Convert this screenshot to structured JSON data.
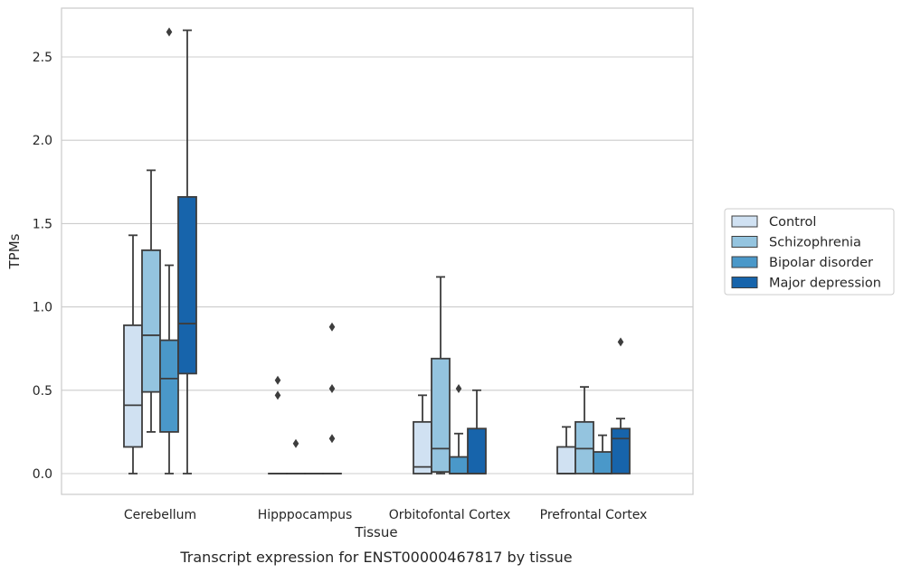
{
  "chart_data": {
    "type": "box",
    "title": "",
    "caption": "Transcript expression for ENST00000467817 by tissue",
    "xlabel": "Tissue",
    "ylabel": "TPMs",
    "ylim": [
      -0.13,
      2.8
    ],
    "yticks": [
      0.0,
      0.5,
      1.0,
      1.5,
      2.0,
      2.5
    ],
    "ytick_labels": [
      "0.0",
      "0.5",
      "1.0",
      "1.5",
      "2.0",
      "2.5"
    ],
    "grid": "horizontal",
    "legend_position": "right",
    "categories": [
      "Cerebellum",
      "Hipppocampus",
      "Orbitofontal Cortex",
      "Prefrontal Cortex"
    ],
    "series": [
      {
        "name": "Control",
        "color": "#d0e1f2",
        "boxes": [
          {
            "whisker_low": 0.0,
            "q1": 0.16,
            "median": 0.41,
            "q3": 0.89,
            "whisker_high": 1.43,
            "outliers": []
          },
          {
            "whisker_low": 0.0,
            "q1": 0.0,
            "median": 0.0,
            "q3": 0.0,
            "whisker_high": 0.0,
            "outliers": [
              0.47,
              0.56
            ]
          },
          {
            "whisker_low": 0.0,
            "q1": 0.0,
            "median": 0.04,
            "q3": 0.31,
            "whisker_high": 0.47,
            "outliers": []
          },
          {
            "whisker_low": 0.0,
            "q1": 0.0,
            "median": 0.0,
            "q3": 0.16,
            "whisker_high": 0.28,
            "outliers": []
          }
        ]
      },
      {
        "name": "Schizophrenia",
        "color": "#94c4df",
        "boxes": [
          {
            "whisker_low": 0.25,
            "q1": 0.49,
            "median": 0.83,
            "q3": 1.34,
            "whisker_high": 1.82,
            "outliers": []
          },
          {
            "whisker_low": 0.0,
            "q1": 0.0,
            "median": 0.0,
            "q3": 0.0,
            "whisker_high": 0.0,
            "outliers": [
              0.18
            ]
          },
          {
            "whisker_low": 0.0,
            "q1": 0.01,
            "median": 0.15,
            "q3": 0.69,
            "whisker_high": 1.18,
            "outliers": []
          },
          {
            "whisker_low": 0.0,
            "q1": 0.0,
            "median": 0.15,
            "q3": 0.31,
            "whisker_high": 0.52,
            "outliers": []
          }
        ]
      },
      {
        "name": "Bipolar disorder",
        "color": "#4a98c9",
        "boxes": [
          {
            "whisker_low": 0.0,
            "q1": 0.25,
            "median": 0.57,
            "q3": 0.8,
            "whisker_high": 1.25,
            "outliers": [
              2.65
            ]
          },
          {
            "whisker_low": 0.0,
            "q1": 0.0,
            "median": 0.0,
            "q3": 0.0,
            "whisker_high": 0.0,
            "outliers": []
          },
          {
            "whisker_low": 0.0,
            "q1": 0.0,
            "median": 0.0,
            "q3": 0.1,
            "whisker_high": 0.24,
            "outliers": [
              0.51
            ]
          },
          {
            "whisker_low": 0.0,
            "q1": 0.0,
            "median": 0.0,
            "q3": 0.13,
            "whisker_high": 0.23,
            "outliers": []
          }
        ]
      },
      {
        "name": "Major depression",
        "color": "#1764ab",
        "boxes": [
          {
            "whisker_low": 0.0,
            "q1": 0.6,
            "median": 0.9,
            "q3": 1.66,
            "whisker_high": 2.66,
            "outliers": []
          },
          {
            "whisker_low": 0.0,
            "q1": 0.0,
            "median": 0.0,
            "q3": 0.0,
            "whisker_high": 0.0,
            "outliers": [
              0.21,
              0.51,
              0.88
            ]
          },
          {
            "whisker_low": 0.0,
            "q1": 0.0,
            "median": 0.0,
            "q3": 0.27,
            "whisker_high": 0.5,
            "outliers": []
          },
          {
            "whisker_low": 0.0,
            "q1": 0.0,
            "median": 0.21,
            "q3": 0.27,
            "whisker_high": 0.33,
            "outliers": [
              0.79
            ]
          }
        ]
      }
    ]
  }
}
